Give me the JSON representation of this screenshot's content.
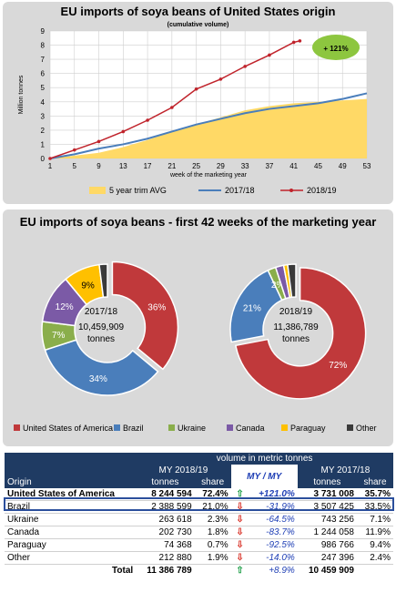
{
  "line_chart": {
    "title": "EU imports of soya beans of United States origin",
    "subtitle": "(cumulative volume)",
    "badge": "+ 121%",
    "colors": {
      "avg": "#ffd966",
      "y1718": "#4a7ebb",
      "y1819": "#c0232b",
      "badge": "#8dc63f"
    }
  },
  "donut_title": "EU imports of soya beans - first 42 weeks of the marketing year",
  "table": {
    "caption": "volume in metric tonnes",
    "origin_header": "Origin",
    "my1819_header": "MY 2018/19",
    "mymy_header": "MY / MY",
    "my1718_header": "MY 2017/18",
    "col_tonnes": "tonnes",
    "col_share": "share",
    "rows": [
      {
        "origin": "United States of America",
        "t1819": "8 244 594",
        "s1819": "72.4%",
        "dir": "up",
        "change": "+121.0%",
        "t1718": "3 731 008",
        "s1718": "35.7%"
      },
      {
        "origin": "Brazil",
        "t1819": "2 388 599",
        "s1819": "21.0%",
        "dir": "down",
        "change": "-31.9%",
        "t1718": "3 507 425",
        "s1718": "33.5%"
      },
      {
        "origin": "Ukraine",
        "t1819": "263 618",
        "s1819": "2.3%",
        "dir": "down",
        "change": "-64.5%",
        "t1718": "743 256",
        "s1718": "7.1%"
      },
      {
        "origin": "Canada",
        "t1819": "202 730",
        "s1819": "1.8%",
        "dir": "down",
        "change": "-83.7%",
        "t1718": "1 244 058",
        "s1718": "11.9%"
      },
      {
        "origin": "Paraguay",
        "t1819": "74 368",
        "s1819": "0.7%",
        "dir": "down",
        "change": "-92.5%",
        "t1718": "986 766",
        "s1718": "9.4%"
      },
      {
        "origin": "Other",
        "t1819": "212 880",
        "s1819": "1.9%",
        "dir": "down",
        "change": "-14.0%",
        "t1718": "247 396",
        "s1718": "2.4%"
      }
    ],
    "total": {
      "label": "Total",
      "t1819": "11 386 789",
      "dir": "up",
      "change": "+8.9%",
      "t1718": "10 459 909"
    }
  },
  "chart_data": [
    {
      "type": "line",
      "title": "EU imports of soya beans of United States origin",
      "subtitle": "(cumulative volume)",
      "xlabel": "week of the marketing year",
      "ylabel": "Million tonnes",
      "ylim": [
        0,
        9
      ],
      "yticks": [
        0,
        1,
        2,
        3,
        4,
        5,
        6,
        7,
        8,
        9
      ],
      "xlim": [
        1,
        53
      ],
      "xticks": [
        1,
        5,
        9,
        13,
        17,
        21,
        25,
        29,
        33,
        37,
        41,
        45,
        49,
        53
      ],
      "grid": true,
      "legend": "bottom",
      "series": [
        {
          "name": "5 year trim AVG",
          "kind": "area",
          "x": [
            1,
            5,
            9,
            13,
            17,
            21,
            25,
            29,
            33,
            37,
            41,
            45,
            49,
            53
          ],
          "values": [
            0,
            0.2,
            0.4,
            0.8,
            1.3,
            1.9,
            2.4,
            2.9,
            3.4,
            3.7,
            3.9,
            4.0,
            4.1,
            4.2
          ]
        },
        {
          "name": "2017/18",
          "kind": "line",
          "x": [
            1,
            5,
            9,
            13,
            17,
            21,
            25,
            29,
            33,
            37,
            41,
            45,
            49,
            53
          ],
          "values": [
            0,
            0.3,
            0.7,
            1.0,
            1.4,
            1.9,
            2.4,
            2.8,
            3.2,
            3.5,
            3.7,
            3.9,
            4.2,
            4.6
          ]
        },
        {
          "name": "2018/19",
          "kind": "line_markers",
          "x": [
            1,
            5,
            9,
            13,
            17,
            21,
            25,
            29,
            33,
            37,
            41,
            42
          ],
          "values": [
            0,
            0.6,
            1.2,
            1.9,
            2.7,
            3.6,
            4.9,
            5.6,
            6.5,
            7.3,
            8.2,
            8.3
          ]
        }
      ]
    },
    {
      "type": "pie",
      "title": "2017/18",
      "center_label": "10,459,909 tonnes",
      "categories": [
        "United States of America",
        "Brazil",
        "Ukraine",
        "Canada",
        "Paraguay",
        "Other"
      ],
      "values": [
        36,
        34,
        7,
        12,
        9,
        2
      ],
      "labels": [
        "36%",
        "34%",
        "7%",
        "12%",
        "9%",
        ""
      ],
      "colors": [
        "#c0393b",
        "#4a7ebb",
        "#8aae4b",
        "#7b5aa6",
        "#ffc000",
        "#3a3a3a"
      ]
    },
    {
      "type": "pie",
      "title": "2018/19",
      "center_label": "11,386,789 tonnes",
      "categories": [
        "United States of America",
        "Brazil",
        "Ukraine",
        "Canada",
        "Paraguay",
        "Other"
      ],
      "values": [
        72,
        21,
        2,
        2,
        1,
        2
      ],
      "labels": [
        "72%",
        "21%",
        "2%",
        "",
        "",
        ""
      ],
      "colors": [
        "#c0393b",
        "#4a7ebb",
        "#8aae4b",
        "#7b5aa6",
        "#ffc000",
        "#3a3a3a"
      ]
    }
  ],
  "donut_legend": [
    "United States of America",
    "Brazil",
    "Ukraine",
    "Canada",
    "Paraguay",
    "Other"
  ],
  "donut_centers": {
    "a_year": "2017/18",
    "a_total": "10,459,909",
    "a_unit": "tonnes",
    "b_year": "2018/19",
    "b_total": "11,386,789",
    "b_unit": "tonnes"
  }
}
